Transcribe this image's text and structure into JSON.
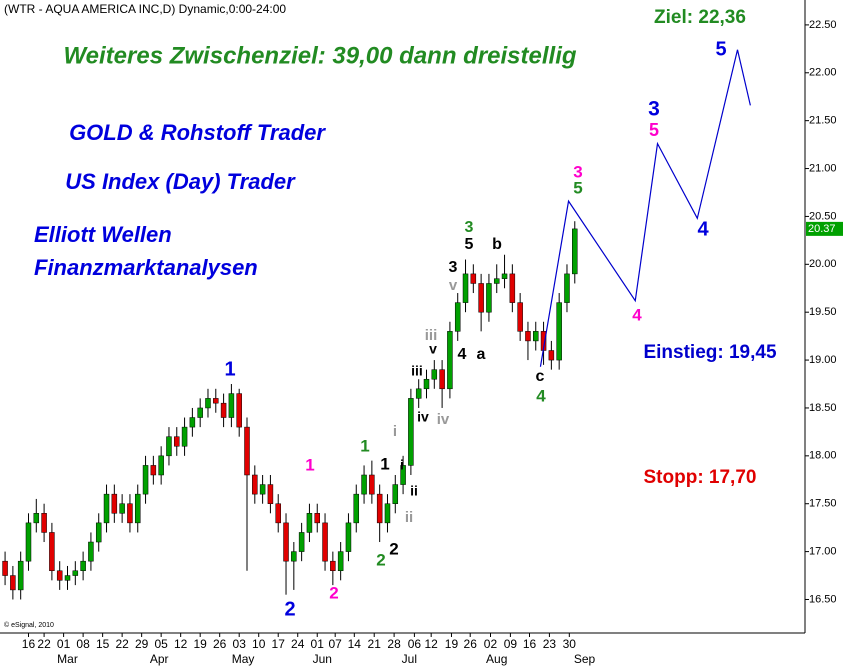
{
  "chart_data": {
    "type": "candlestick",
    "header": "(WTR - AQUA AMERICA INC,D) Dynamic,0:00-24:00",
    "credit": "© eSignal, 2010",
    "up_color": "#00a000",
    "down_color": "#e00000",
    "x": [
      0,
      2,
      4,
      6,
      8,
      10,
      12,
      14,
      16,
      18,
      20,
      22,
      24,
      26,
      28,
      30,
      32,
      34,
      36,
      38,
      40,
      42,
      44,
      46,
      48,
      50,
      52,
      54,
      56,
      58,
      60,
      62,
      64,
      66,
      68,
      70,
      72,
      74,
      76,
      78,
      80,
      82,
      84,
      86,
      88,
      90,
      92,
      94,
      96,
      98,
      100,
      102,
      104,
      106,
      108,
      110,
      112,
      114,
      116,
      118,
      120,
      122,
      124,
      126,
      128,
      130,
      132,
      134,
      136,
      138,
      140,
      142,
      144,
      146
    ],
    "open": [
      16.9,
      16.75,
      16.6,
      16.9,
      17.3,
      17.4,
      17.2,
      16.8,
      16.7,
      16.75,
      16.8,
      16.9,
      17.1,
      17.3,
      17.6,
      17.4,
      17.5,
      17.3,
      17.6,
      17.9,
      17.8,
      18.0,
      18.2,
      18.1,
      18.3,
      18.4,
      18.5,
      18.6,
      18.55,
      18.4,
      18.65,
      18.3,
      17.8,
      17.6,
      17.7,
      17.5,
      17.3,
      16.9,
      17.0,
      17.2,
      17.4,
      17.3,
      16.9,
      16.8,
      17.0,
      17.3,
      17.6,
      17.8,
      17.6,
      17.3,
      17.5,
      17.7,
      17.9,
      18.6,
      18.7,
      18.8,
      18.9,
      18.7,
      19.3,
      19.6,
      19.9,
      19.8,
      19.5,
      19.8,
      19.85,
      19.9,
      19.6,
      19.3,
      19.2,
      19.3,
      19.1,
      19.0,
      19.6,
      19.9
    ],
    "high": [
      17.0,
      16.85,
      17.0,
      17.4,
      17.55,
      17.5,
      17.3,
      16.9,
      16.85,
      16.9,
      17.0,
      17.2,
      17.4,
      17.7,
      17.7,
      17.6,
      17.6,
      17.7,
      18.0,
      18.0,
      18.1,
      18.3,
      18.3,
      18.4,
      18.5,
      18.6,
      18.7,
      18.7,
      18.65,
      18.75,
      18.7,
      18.4,
      17.9,
      17.8,
      17.8,
      17.6,
      17.4,
      17.1,
      17.3,
      17.5,
      17.5,
      17.4,
      17.0,
      17.1,
      17.4,
      17.7,
      17.9,
      17.95,
      17.7,
      17.6,
      17.8,
      18.0,
      18.7,
      18.8,
      18.9,
      19.0,
      19.0,
      19.4,
      19.7,
      20.05,
      20.0,
      19.9,
      19.9,
      20.0,
      20.1,
      20.0,
      19.7,
      19.4,
      19.4,
      19.4,
      19.2,
      19.7,
      20.0,
      20.45
    ],
    "low": [
      16.65,
      16.5,
      16.5,
      16.8,
      17.2,
      17.1,
      16.7,
      16.6,
      16.6,
      16.65,
      16.7,
      16.8,
      17.0,
      17.2,
      17.3,
      17.3,
      17.2,
      17.2,
      17.5,
      17.7,
      17.7,
      17.9,
      18.0,
      18.0,
      18.2,
      18.3,
      18.4,
      18.45,
      18.3,
      18.3,
      18.2,
      16.8,
      17.5,
      17.5,
      17.4,
      17.2,
      16.55,
      16.6,
      16.9,
      17.1,
      17.2,
      16.8,
      16.65,
      16.7,
      16.9,
      17.2,
      17.5,
      17.5,
      17.1,
      17.2,
      17.4,
      17.6,
      17.8,
      18.5,
      18.6,
      18.7,
      18.5,
      18.6,
      19.2,
      19.5,
      19.7,
      19.3,
      19.4,
      19.7,
      19.75,
      19.5,
      19.2,
      19.0,
      19.1,
      18.95,
      18.9,
      18.9,
      19.5,
      19.8
    ],
    "close": [
      16.75,
      16.6,
      16.9,
      17.3,
      17.4,
      17.2,
      16.8,
      16.7,
      16.75,
      16.8,
      16.9,
      17.1,
      17.3,
      17.6,
      17.4,
      17.5,
      17.3,
      17.6,
      17.9,
      17.8,
      18.0,
      18.2,
      18.1,
      18.3,
      18.4,
      18.5,
      18.6,
      18.55,
      18.4,
      18.65,
      18.3,
      17.8,
      17.6,
      17.7,
      17.5,
      17.3,
      16.9,
      17.0,
      17.2,
      17.4,
      17.3,
      16.9,
      16.8,
      17.0,
      17.3,
      17.6,
      17.8,
      17.6,
      17.3,
      17.5,
      17.7,
      17.9,
      18.6,
      18.7,
      18.8,
      18.9,
      18.7,
      19.3,
      19.6,
      19.9,
      19.8,
      19.5,
      19.8,
      19.85,
      19.9,
      19.6,
      19.3,
      19.2,
      19.3,
      19.1,
      19.0,
      19.6,
      19.9,
      20.37
    ],
    "forecast": {
      "color": "#0000cc",
      "x": [
        137.2,
        144.4,
        161.5,
        167.2,
        177.4,
        187.7,
        191.0
      ],
      "values": [
        18.93,
        20.66,
        19.62,
        21.26,
        20.48,
        22.24,
        21.66
      ]
    },
    "xlim": [
      -1.3,
      205
    ],
    "ylim": [
      16.15,
      22.76
    ],
    "yticks": [
      {
        "value": 16.5,
        "label": "16.50"
      },
      {
        "value": 17,
        "label": "17.00"
      },
      {
        "value": 17.5,
        "label": "17.50"
      },
      {
        "value": 18,
        "label": "18.00"
      },
      {
        "value": 18.5,
        "label": "18.50"
      },
      {
        "value": 19,
        "label": "19.00"
      },
      {
        "value": 19.5,
        "label": "19.50"
      },
      {
        "value": 20,
        "label": "20.00"
      },
      {
        "value": 20.5,
        "label": "20.50"
      },
      {
        "value": 21,
        "label": "21.00"
      },
      {
        "value": 21.5,
        "label": "21.50"
      },
      {
        "value": 22,
        "label": "22.00"
      },
      {
        "value": 22.5,
        "label": "22.50"
      }
    ],
    "xticks": [
      {
        "value": 6,
        "label": "16"
      },
      {
        "value": 10,
        "label": "22"
      },
      {
        "value": 15,
        "label": "01"
      },
      {
        "value": 20,
        "label": "08"
      },
      {
        "value": 25,
        "label": "15"
      },
      {
        "value": 30,
        "label": "22"
      },
      {
        "value": 35,
        "label": "29"
      },
      {
        "value": 40,
        "label": "05"
      },
      {
        "value": 45,
        "label": "12"
      },
      {
        "value": 50,
        "label": "19"
      },
      {
        "value": 55,
        "label": "26"
      },
      {
        "value": 60,
        "label": "03"
      },
      {
        "value": 65,
        "label": "10"
      },
      {
        "value": 70,
        "label": "17"
      },
      {
        "value": 75,
        "label": "24"
      },
      {
        "value": 80,
        "label": "01"
      },
      {
        "value": 84.6,
        "label": "07"
      },
      {
        "value": 89.5,
        "label": "14"
      },
      {
        "value": 94.6,
        "label": "21"
      },
      {
        "value": 99.7,
        "label": "28"
      },
      {
        "value": 104.9,
        "label": "06"
      },
      {
        "value": 109.2,
        "label": "12"
      },
      {
        "value": 114.4,
        "label": "19"
      },
      {
        "value": 119.2,
        "label": "26"
      },
      {
        "value": 124.4,
        "label": "02"
      },
      {
        "value": 129.5,
        "label": "09"
      },
      {
        "value": 134.4,
        "label": "16"
      },
      {
        "value": 139.5,
        "label": "23"
      },
      {
        "value": 144.6,
        "label": "30"
      }
    ],
    "month_ticks": [
      {
        "value": 16,
        "label": "Mar"
      },
      {
        "value": 39.5,
        "label": "Apr"
      },
      {
        "value": 61,
        "label": "May"
      },
      {
        "value": 81.3,
        "label": "Jun"
      },
      {
        "value": 103.6,
        "label": "Jul"
      },
      {
        "value": 126,
        "label": "Aug"
      },
      {
        "value": 148.5,
        "label": "Sep"
      }
    ],
    "texts": [
      {
        "text": "Ziel: 22,36",
        "color": "#228b22"
      },
      {
        "text": "Weiteres Zwischenziel: 39,00 dann dreistellig",
        "color": "#228b22"
      },
      {
        "text": "GOLD & Rohstoff Trader",
        "color": "#0000dd"
      },
      {
        "text": "US Index (Day) Trader",
        "color": "#0000dd"
      },
      {
        "text": "Elliott Wellen",
        "color": "#0000dd"
      },
      {
        "text": "Finanzmarktanalysen",
        "color": "#0000dd"
      },
      {
        "text": "Einstieg: 19,45",
        "color": "#0000cc"
      },
      {
        "text": "Stopp: 17,70",
        "color": "#e00000"
      }
    ],
    "waves": [
      {
        "text": "1",
        "color": "#0000dd"
      },
      {
        "text": "2",
        "color": "#0000dd"
      },
      {
        "text": "1",
        "color": "#ff00cc"
      },
      {
        "text": "2",
        "color": "#ff00cc"
      },
      {
        "text": "1",
        "color": "#228b22"
      },
      {
        "text": "2",
        "color": "#228b22"
      },
      {
        "text": "1",
        "color": "#000"
      },
      {
        "text": "2",
        "color": "#000"
      },
      {
        "text": "i",
        "color": "#999"
      },
      {
        "text": "i",
        "color": "#000"
      },
      {
        "text": "ii",
        "color": "#000"
      },
      {
        "text": "ii",
        "color": "#999"
      },
      {
        "text": "iii",
        "color": "#000"
      },
      {
        "text": "iv",
        "color": "#000"
      },
      {
        "text": "iii",
        "color": "#999"
      },
      {
        "text": "v",
        "color": "#000"
      },
      {
        "text": "iv",
        "color": "#999"
      },
      {
        "text": "3",
        "color": "#000"
      },
      {
        "text": "v",
        "color": "#999"
      },
      {
        "text": "4",
        "color": "#000"
      },
      {
        "text": "3",
        "color": "#228b22"
      },
      {
        "text": "5",
        "color": "#000"
      },
      {
        "text": "a",
        "color": "#000"
      },
      {
        "text": "b",
        "color": "#000"
      },
      {
        "text": "c",
        "color": "#000"
      },
      {
        "text": "4",
        "color": "#228b22"
      },
      {
        "text": "3",
        "color": "#ff00cc"
      },
      {
        "text": "5",
        "color": "#228b22"
      },
      {
        "text": "4",
        "color": "#ff00cc"
      },
      {
        "text": "3",
        "color": "#0000dd"
      },
      {
        "text": "5",
        "color": "#ff00cc"
      },
      {
        "text": "4",
        "color": "#0000dd"
      },
      {
        "text": "5",
        "color": "#0000dd"
      }
    ]
  }
}
